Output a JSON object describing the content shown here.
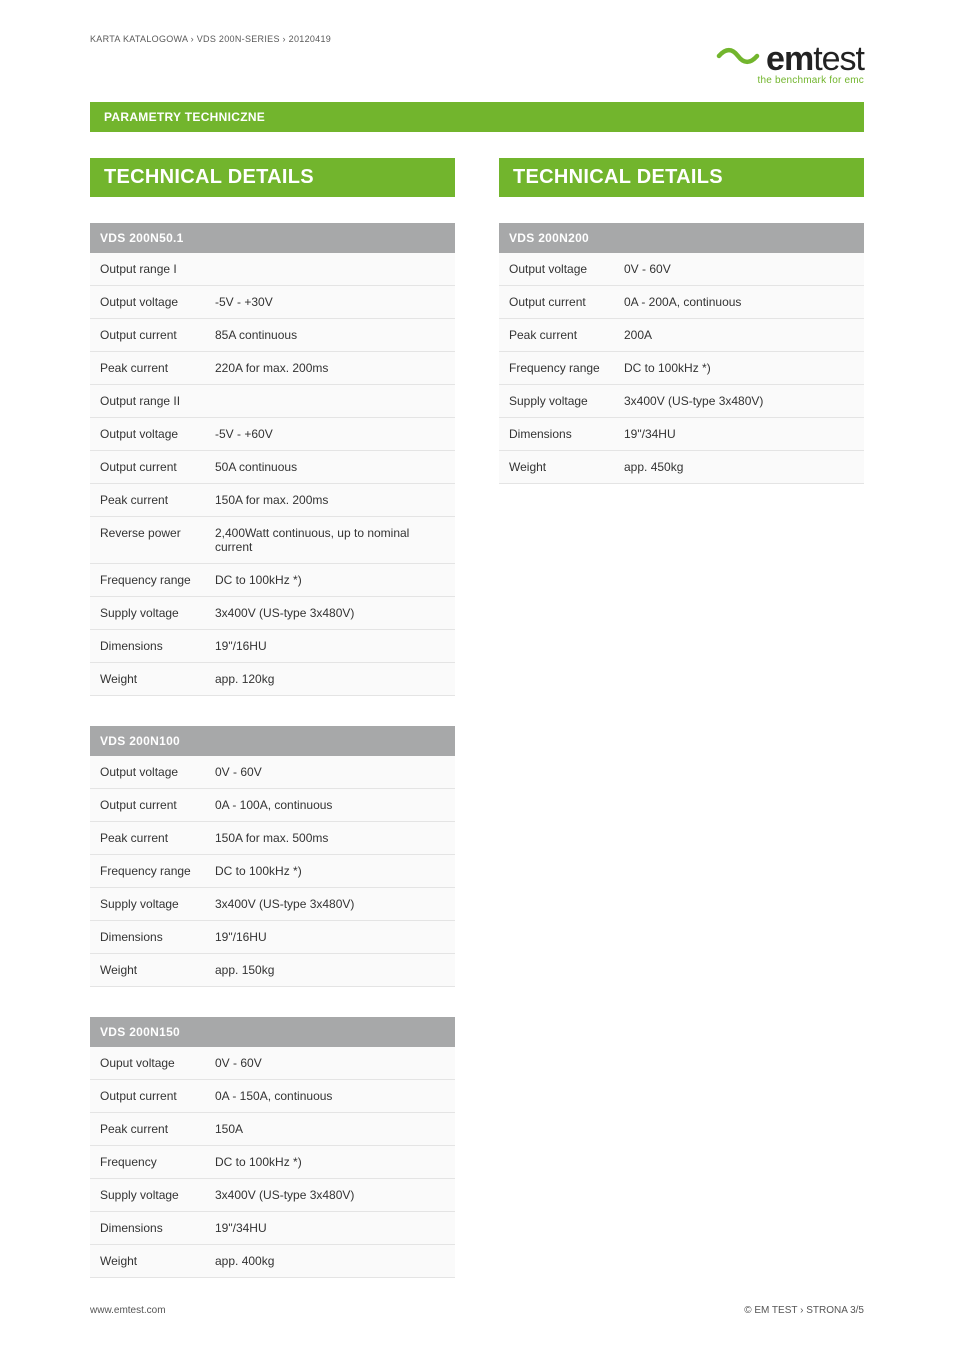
{
  "header": {
    "breadcrumb": "KARTA KATALOGOWA › VDS 200N-series › 20120419",
    "logo_word_bold": "em",
    "logo_word_rest": "test",
    "logo_tagline": "the benchmark for emc",
    "logo_mark_color": "#72b52d",
    "logo_text_color": "#222222",
    "tagline_color": "#72b52d"
  },
  "greenbar_label": "PARAMETRY TECHNICZNE",
  "colors": {
    "accent": "#72b52d",
    "table_header_bg": "#a7a8a9",
    "table_header_text": "#ffffff",
    "row_bg": "#fafafa",
    "row_border": "#e4e4e4",
    "body_text": "#333333",
    "page_bg": "#ffffff"
  },
  "left": {
    "section_title": "TECHNICAL DETAILS",
    "tables": [
      {
        "title": "VDS 200N50.1",
        "rows": [
          {
            "k": "Output range I",
            "v": "",
            "subhead": true
          },
          {
            "k": "Output voltage",
            "v": "-5V - +30V"
          },
          {
            "k": "Output current",
            "v": "85A continuous"
          },
          {
            "k": "Peak current",
            "v": "220A for max. 200ms"
          },
          {
            "k": "Output range II",
            "v": "",
            "subhead": true
          },
          {
            "k": "Output voltage",
            "v": "-5V - +60V"
          },
          {
            "k": "Output current",
            "v": "50A continuous"
          },
          {
            "k": "Peak current",
            "v": "150A for max. 200ms"
          },
          {
            "k": "Reverse power",
            "v": "2,400Watt continuous, up to nominal current"
          },
          {
            "k": "Frequency range",
            "v": "DC to 100kHz *)"
          },
          {
            "k": "Supply voltage",
            "v": "3x400V (US-type 3x480V)"
          },
          {
            "k": "Dimensions",
            "v": "19\"/16HU"
          },
          {
            "k": "Weight",
            "v": "app. 120kg"
          }
        ]
      },
      {
        "title": "VDS 200N100",
        "rows": [
          {
            "k": "Output voltage",
            "v": "0V - 60V"
          },
          {
            "k": "Output current",
            "v": "0A - 100A, continuous"
          },
          {
            "k": "Peak current",
            "v": "150A for max. 500ms"
          },
          {
            "k": "Frequency range",
            "v": "DC to 100kHz *)"
          },
          {
            "k": "Supply voltage",
            "v": "3x400V (US-type 3x480V)"
          },
          {
            "k": "Dimensions",
            "v": "19\"/16HU"
          },
          {
            "k": "Weight",
            "v": "app. 150kg"
          }
        ]
      },
      {
        "title": "VDS 200N150",
        "rows": [
          {
            "k": "Ouput voltage",
            "v": "0V - 60V"
          },
          {
            "k": "Output current",
            "v": "0A - 150A, continuous"
          },
          {
            "k": "Peak current",
            "v": "150A"
          },
          {
            "k": "Frequency",
            "v": "DC to 100kHz *)"
          },
          {
            "k": "Supply voltage",
            "v": "3x400V (US-type 3x480V)"
          },
          {
            "k": "Dimensions",
            "v": "19\"/34HU"
          },
          {
            "k": "Weight",
            "v": "app. 400kg"
          }
        ]
      }
    ]
  },
  "right": {
    "section_title": "TECHNICAL DETAILS",
    "tables": [
      {
        "title": "VDS 200N200",
        "rows": [
          {
            "k": "Output voltage",
            "v": "0V - 60V"
          },
          {
            "k": "Output current",
            "v": "0A - 200A, continuous"
          },
          {
            "k": "Peak current",
            "v": "200A"
          },
          {
            "k": "Frequency range",
            "v": "DC to 100kHz *)"
          },
          {
            "k": "Supply voltage",
            "v": "3x400V (US-type 3x480V)"
          },
          {
            "k": "Dimensions",
            "v": "19\"/34HU"
          },
          {
            "k": "Weight",
            "v": "app. 450kg"
          }
        ]
      }
    ]
  },
  "footer": {
    "left": "www.emtest.com",
    "right": "© EM TEST › STRONA 3/5"
  }
}
